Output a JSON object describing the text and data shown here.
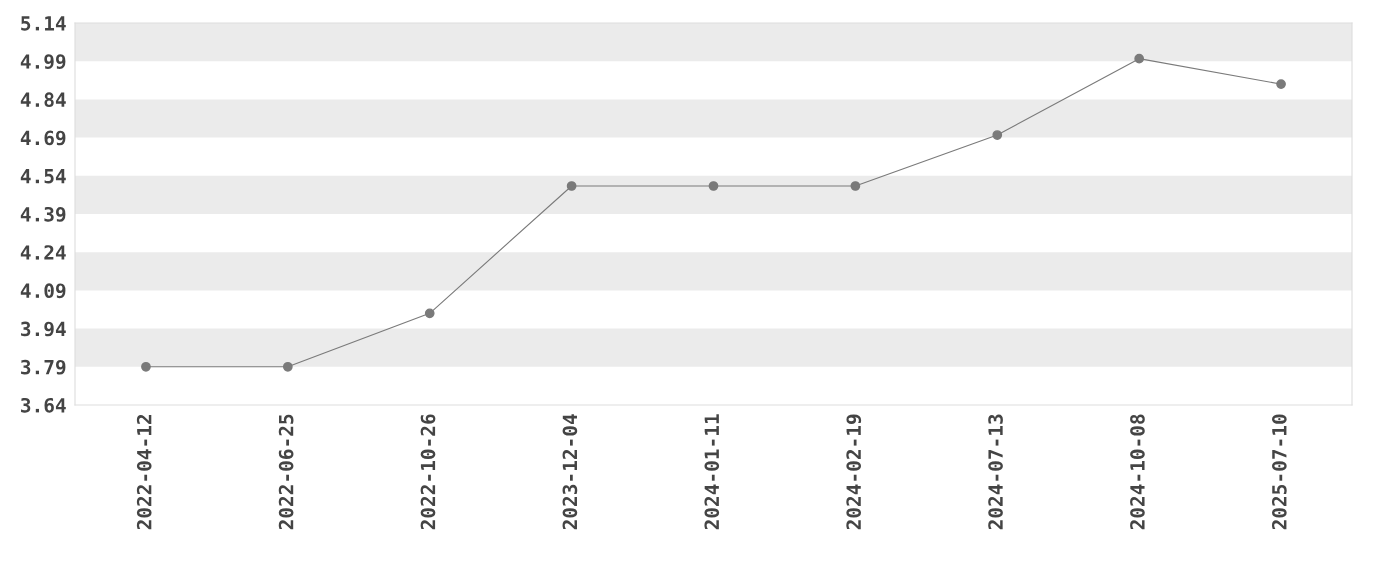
{
  "chart_data": {
    "type": "line",
    "categories": [
      "2022-04-12",
      "2022-06-25",
      "2022-10-26",
      "2023-12-04",
      "2024-01-11",
      "2024-02-19",
      "2024-07-13",
      "2024-10-08",
      "2025-07-10"
    ],
    "series": [
      {
        "color": "#7a7a7a",
        "values": [
          3.79,
          3.79,
          4.0,
          4.5,
          4.5,
          4.5,
          4.7,
          5.0,
          4.9
        ]
      }
    ],
    "ylim": [
      3.64,
      5.14
    ],
    "yticks": [
      {
        "value": 3.64,
        "label": "3.64"
      },
      {
        "value": 3.79,
        "label": "3.79"
      },
      {
        "value": 3.94,
        "label": "3.94"
      },
      {
        "value": 4.09,
        "label": "4.09"
      },
      {
        "value": 4.24,
        "label": "4.24"
      },
      {
        "value": 4.39,
        "label": "4.39"
      },
      {
        "value": 4.54,
        "label": "4.54"
      },
      {
        "value": 4.69,
        "label": "4.69"
      },
      {
        "value": 4.84,
        "label": "4.84"
      },
      {
        "value": 4.99,
        "label": "4.99"
      },
      {
        "value": 5.14,
        "label": "5.14"
      }
    ],
    "bands": [
      {
        "axis": "y",
        "from": 3.79,
        "to": 3.94,
        "color": "#ebebeb"
      },
      {
        "axis": "y",
        "from": 4.09,
        "to": 4.24,
        "color": "#ebebeb"
      },
      {
        "axis": "y",
        "from": 4.39,
        "to": 4.54,
        "color": "#ebebeb"
      },
      {
        "axis": "y",
        "from": 4.69,
        "to": 4.84,
        "color": "#ebebeb"
      },
      {
        "axis": "y",
        "from": 4.99,
        "to": 5.14,
        "color": "#ebebeb"
      }
    ],
    "marker": "circle",
    "line_style": "solid",
    "grid": false,
    "legend": false
  }
}
